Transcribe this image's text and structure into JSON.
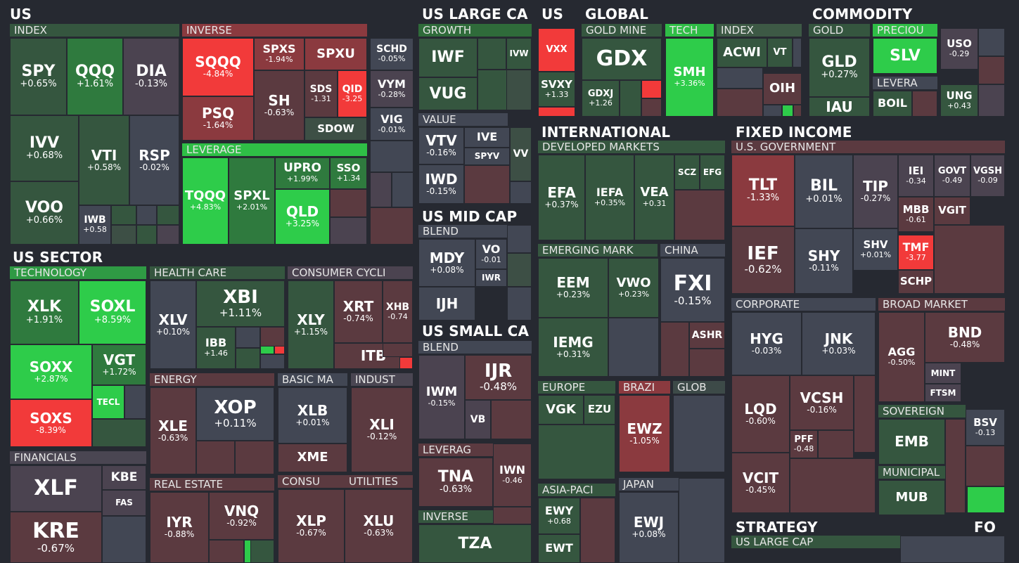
{
  "colors": {
    "bg": "#262931",
    "neutral": "#424754",
    "green_dark": "#35563f",
    "green_mid": "#2f7a3e",
    "green_bright": "#2ecc4a",
    "red_dark": "#5b3a40",
    "red_mid": "#8b3a3f",
    "red_bright": "#f23a3a"
  },
  "sections": {
    "us": "US",
    "us_sector": "US SECTOR",
    "us_large_cap": "US LARGE CA",
    "us_mid_cap": "US MID CAP",
    "us_small_cap": "US SMALL CA",
    "us_vol": "US",
    "global": "GLOBAL",
    "international": "INTERNATIONAL",
    "commodity": "COMMODITY",
    "fixed_income": "FIXED INCOME",
    "strategy": "STRATEGY",
    "fo": "FO"
  },
  "groups": {
    "index": "INDEX",
    "inverse": "INVERSE",
    "leverage": "LEVERAGE",
    "technology": "TECHNOLOGY",
    "health_care": "HEALTH CARE",
    "consumer_cycl": "CONSUMER CYCLI",
    "financials": "FINANCIALS",
    "energy": "ENERGY",
    "basic_ma": "BASIC MA",
    "indust": "INDUST",
    "real_estate": "REAL ESTATE",
    "consu": "CONSU",
    "utilities": "UTILITIES",
    "growth": "GROWTH",
    "value": "VALUE",
    "mid_blend": "BLEND",
    "small_blend": "BLEND",
    "small_leverag": "LEVERAG",
    "small_inverse": "INVERSE",
    "gold_mine": "GOLD MINE",
    "tech": "TECH",
    "global_index": "INDEX",
    "developed": "DEVELOPED MARKETS",
    "emerging": "EMERGING MARK",
    "china": "CHINA",
    "europe": "EUROPE",
    "brazi": "BRAZI",
    "glob": "GLOB",
    "asia_paci": "ASIA-PACI",
    "japan": "JAPAN",
    "gold": "GOLD",
    "preciou": "PRECIOU",
    "levera": "LEVERA",
    "us_gov": "U.S. GOVERNMENT",
    "corporate": "CORPORATE",
    "broad_market": "BROAD MARKET",
    "sovereign": "SOVEREIGN",
    "municipal": "MUNICIPAL",
    "strategy_lc": "US LARGE CAP"
  },
  "tiles": {
    "SPY": {
      "t": "SPY",
      "c": "+0.65%"
    },
    "QQQ": {
      "t": "QQQ",
      "c": "+1.61%"
    },
    "DIA": {
      "t": "DIA",
      "c": "-0.13%"
    },
    "IVV": {
      "t": "IVV",
      "c": "+0.68%"
    },
    "VTI": {
      "t": "VTI",
      "c": "+0.58%"
    },
    "RSP": {
      "t": "RSP",
      "c": "-0.02%"
    },
    "VOO": {
      "t": "VOO",
      "c": "+0.66%"
    },
    "IWB": {
      "t": "IWB",
      "c": "+0.58"
    },
    "SQQQ": {
      "t": "SQQQ",
      "c": "-4.84%"
    },
    "SPXS": {
      "t": "SPXS",
      "c": "-1.94%"
    },
    "SPXU": {
      "t": "SPXU",
      "c": ""
    },
    "PSQ": {
      "t": "PSQ",
      "c": "-1.64%"
    },
    "SH": {
      "t": "SH",
      "c": "-0.63%"
    },
    "SDS": {
      "t": "SDS",
      "c": "-1.31"
    },
    "QID": {
      "t": "QID",
      "c": "-3.25"
    },
    "SDOW": {
      "t": "SDOW",
      "c": ""
    },
    "SCHD": {
      "t": "SCHD",
      "c": "-0.05%"
    },
    "VYM": {
      "t": "VYM",
      "c": "-0.28%"
    },
    "VIG": {
      "t": "VIG",
      "c": "-0.01%"
    },
    "TQQQ": {
      "t": "TQQQ",
      "c": "+4.83%"
    },
    "SPXL": {
      "t": "SPXL",
      "c": "+2.01%"
    },
    "UPRO": {
      "t": "UPRO",
      "c": "+1.99%"
    },
    "SSO": {
      "t": "SSO",
      "c": "+1.34"
    },
    "QLD": {
      "t": "QLD",
      "c": "+3.25%"
    },
    "XLK": {
      "t": "XLK",
      "c": "+1.91%"
    },
    "SOXL": {
      "t": "SOXL",
      "c": "+8.59%"
    },
    "SOXX": {
      "t": "SOXX",
      "c": "+2.87%"
    },
    "VGT": {
      "t": "VGT",
      "c": "+1.72%"
    },
    "TECL": {
      "t": "TECL",
      "c": ""
    },
    "SOXS": {
      "t": "SOXS",
      "c": "-8.39%"
    },
    "XLV": {
      "t": "XLV",
      "c": "+0.10%"
    },
    "XBI": {
      "t": "XBI",
      "c": "+1.11%"
    },
    "IBB": {
      "t": "IBB",
      "c": "+1.46"
    },
    "XLY": {
      "t": "XLY",
      "c": "+1.15%"
    },
    "XRT": {
      "t": "XRT",
      "c": "-0.74%"
    },
    "XHB": {
      "t": "XHB",
      "c": "-0.74"
    },
    "ITB": {
      "t": "ITB",
      "c": ""
    },
    "XLF": {
      "t": "XLF",
      "c": ""
    },
    "KBE": {
      "t": "KBE",
      "c": ""
    },
    "FAS": {
      "t": "FAS",
      "c": ""
    },
    "KRE": {
      "t": "KRE",
      "c": "-0.67%"
    },
    "XLE": {
      "t": "XLE",
      "c": "-0.63%"
    },
    "XOP": {
      "t": "XOP",
      "c": "+0.11%"
    },
    "XLB": {
      "t": "XLB",
      "c": "+0.01%"
    },
    "XME": {
      "t": "XME",
      "c": ""
    },
    "XLI": {
      "t": "XLI",
      "c": "-0.12%"
    },
    "IYR": {
      "t": "IYR",
      "c": "-0.88%"
    },
    "VNQ": {
      "t": "VNQ",
      "c": "-0.92%"
    },
    "XLP": {
      "t": "XLP",
      "c": "-0.67%"
    },
    "XLU": {
      "t": "XLU",
      "c": "-0.63%"
    },
    "IWF": {
      "t": "IWF",
      "c": ""
    },
    "IVW": {
      "t": "IVW",
      "c": ""
    },
    "VUG": {
      "t": "VUG",
      "c": ""
    },
    "VTV": {
      "t": "VTV",
      "c": "-0.16%"
    },
    "IVE": {
      "t": "IVE",
      "c": ""
    },
    "SPYV": {
      "t": "SPYV",
      "c": ""
    },
    "VV": {
      "t": "VV",
      "c": ""
    },
    "IWD": {
      "t": "IWD",
      "c": "-0.15%"
    },
    "MDY": {
      "t": "MDY",
      "c": "+0.08%"
    },
    "VO": {
      "t": "VO",
      "c": "-0.01"
    },
    "IWR": {
      "t": "IWR",
      "c": ""
    },
    "IJH": {
      "t": "IJH",
      "c": ""
    },
    "IWM": {
      "t": "IWM",
      "c": "-0.15%"
    },
    "IJR": {
      "t": "IJR",
      "c": "-0.48%"
    },
    "VB": {
      "t": "VB",
      "c": ""
    },
    "TNA": {
      "t": "TNA",
      "c": "-0.63%"
    },
    "IWN": {
      "t": "IWN",
      "c": "-0.46"
    },
    "TZA": {
      "t": "TZA",
      "c": ""
    },
    "VXX": {
      "t": "VXX",
      "c": ""
    },
    "SVXY": {
      "t": "SVXY",
      "c": "+1.33"
    },
    "GDX": {
      "t": "GDX",
      "c": ""
    },
    "GDXJ": {
      "t": "GDXJ",
      "c": "+1.26"
    },
    "SMH": {
      "t": "SMH",
      "c": "+3.36%"
    },
    "ACWI": {
      "t": "ACWI",
      "c": ""
    },
    "VT": {
      "t": "VT",
      "c": ""
    },
    "OIH": {
      "t": "OIH",
      "c": ""
    },
    "EFA": {
      "t": "EFA",
      "c": "+0.37%"
    },
    "IEFA": {
      "t": "IEFA",
      "c": "+0.35%"
    },
    "VEA": {
      "t": "VEA",
      "c": "+0.31"
    },
    "SCZ": {
      "t": "SCZ",
      "c": ""
    },
    "EFG": {
      "t": "EFG",
      "c": ""
    },
    "EEM": {
      "t": "EEM",
      "c": "+0.23%"
    },
    "VWO": {
      "t": "VWO",
      "c": "+0.23%"
    },
    "IEMG": {
      "t": "IEMG",
      "c": "+0.31%"
    },
    "FXI": {
      "t": "FXI",
      "c": "-0.15%"
    },
    "ASHR": {
      "t": "ASHR",
      "c": ""
    },
    "VGK": {
      "t": "VGK",
      "c": ""
    },
    "EZU": {
      "t": "EZU",
      "c": ""
    },
    "EWZ": {
      "t": "EWZ",
      "c": "-1.05%"
    },
    "EWY": {
      "t": "EWY",
      "c": "+0.68"
    },
    "EWT": {
      "t": "EWT",
      "c": ""
    },
    "EWJ": {
      "t": "EWJ",
      "c": "+0.08%"
    },
    "GLD": {
      "t": "GLD",
      "c": "+0.27%"
    },
    "IAU": {
      "t": "IAU",
      "c": ""
    },
    "SLV": {
      "t": "SLV",
      "c": ""
    },
    "BOIL": {
      "t": "BOIL",
      "c": ""
    },
    "USO": {
      "t": "USO",
      "c": "-0.29"
    },
    "UNG": {
      "t": "UNG",
      "c": "+0.43"
    },
    "TLT": {
      "t": "TLT",
      "c": "-1.33%"
    },
    "BIL": {
      "t": "BIL",
      "c": "+0.01%"
    },
    "TIP": {
      "t": "TIP",
      "c": "-0.27%"
    },
    "IEI": {
      "t": "IEI",
      "c": "-0.34"
    },
    "GOVT": {
      "t": "GOVT",
      "c": "-0.49"
    },
    "VGSH": {
      "t": "VGSH",
      "c": "-0.09"
    },
    "MBB": {
      "t": "MBB",
      "c": "-0.61"
    },
    "VGIT": {
      "t": "VGIT",
      "c": ""
    },
    "IEF": {
      "t": "IEF",
      "c": "-0.62%"
    },
    "SHY": {
      "t": "SHY",
      "c": "-0.11%"
    },
    "SHV": {
      "t": "SHV",
      "c": "+0.01%"
    },
    "TMF": {
      "t": "TMF",
      "c": "-3.77"
    },
    "SCHP": {
      "t": "SCHP",
      "c": ""
    },
    "HYG": {
      "t": "HYG",
      "c": "-0.03%"
    },
    "JNK": {
      "t": "JNK",
      "c": "+0.03%"
    },
    "LQD": {
      "t": "LQD",
      "c": "-0.60%"
    },
    "VCSH": {
      "t": "VCSH",
      "c": "-0.16%"
    },
    "PFF": {
      "t": "PFF",
      "c": "-0.48"
    },
    "VCIT": {
      "t": "VCIT",
      "c": "-0.45%"
    },
    "AGG": {
      "t": "AGG",
      "c": "-0.50%"
    },
    "BND": {
      "t": "BND",
      "c": "-0.48%"
    },
    "MINT": {
      "t": "MINT",
      "c": ""
    },
    "FTSM": {
      "t": "FTSM",
      "c": ""
    },
    "EMB": {
      "t": "EMB",
      "c": ""
    },
    "BSV": {
      "t": "BSV",
      "c": "-0.13"
    },
    "MUB": {
      "t": "MUB",
      "c": ""
    }
  }
}
